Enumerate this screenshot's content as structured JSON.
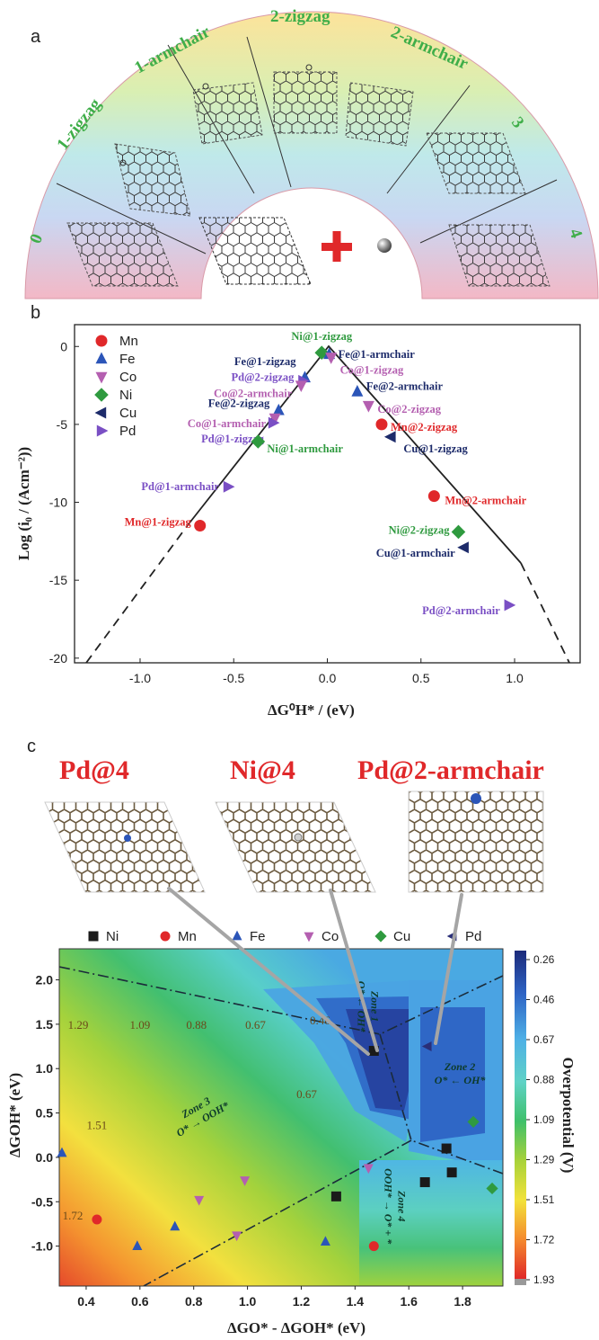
{
  "panel_a": {
    "letter": "a",
    "region_labels": [
      "0",
      "1-zigzag",
      "1-armchair",
      "2-zigzag",
      "2-armchair",
      "3",
      "4"
    ]
  },
  "panel_b": {
    "letter": "b"
  },
  "panel_c": {
    "letter": "c",
    "structure_titles": [
      "Pd@4",
      "Ni@4",
      "Pd@2-armchair"
    ]
  },
  "chart_data": [
    {
      "type": "scatter",
      "id": "volcano",
      "xlabel": "ΔG⁰H* / (eV)",
      "ylabel": "Log (i₀ / (Acm⁻²))",
      "xlim": [
        -1.35,
        1.35
      ],
      "ylim": [
        -20.3,
        1.4
      ],
      "xticks": [
        -1.0,
        -0.5,
        0.0,
        0.5,
        1.0
      ],
      "xtick_labels": [
        "-1.0",
        "-0.5",
        "0.0",
        "0.5",
        "1.0"
      ],
      "yticks": [
        0,
        -5,
        -10,
        -15,
        -20
      ],
      "ytick_labels": [
        "0",
        "-5",
        "-10",
        "-15",
        "-20"
      ],
      "legend": [
        {
          "name": "Mn",
          "marker": "circle",
          "color": "#e0282a"
        },
        {
          "name": "Fe",
          "marker": "triangle-up",
          "color": "#2b55b8"
        },
        {
          "name": "Co",
          "marker": "triangle-down",
          "color": "#b45fb0"
        },
        {
          "name": "Ni",
          "marker": "diamond",
          "color": "#2f9a3f"
        },
        {
          "name": "Cu",
          "marker": "triangle-left",
          "color": "#1d2b6a"
        },
        {
          "name": "Pd",
          "marker": "triangle-right",
          "color": "#7a4fc4"
        }
      ],
      "points": [
        {
          "label": "Ni@1-zigzag",
          "metal": "Ni",
          "x": -0.03,
          "y": -0.4,
          "color": "#2f9a3f"
        },
        {
          "label": "Fe@1-armchair",
          "metal": "Fe",
          "x": 0.01,
          "y": -0.5,
          "color": "#1d2b6a"
        },
        {
          "label": "Co@1-zigzag",
          "metal": "Co",
          "x": 0.02,
          "y": -0.7,
          "color": "#b45fb0"
        },
        {
          "label": "Fe@1-zigzag",
          "metal": "Fe",
          "x": -0.12,
          "y": -2.0,
          "color": "#1d2b6a"
        },
        {
          "label": "Pd@2-zigzag",
          "metal": "Pd",
          "x": -0.13,
          "y": -2.2,
          "color": "#7a4fc4"
        },
        {
          "label": "Co@2-armchair",
          "metal": "Co",
          "x": -0.14,
          "y": -2.5,
          "color": "#b45fb0"
        },
        {
          "label": "Fe@2-armchair",
          "metal": "Fe",
          "x": 0.16,
          "y": -2.9,
          "color": "#1d2b6a"
        },
        {
          "label": "Fe@2-zigzag",
          "metal": "Fe",
          "x": -0.26,
          "y": -4.1,
          "color": "#1d2b6a"
        },
        {
          "label": "Co@1-armchair",
          "metal": "Co",
          "x": -0.28,
          "y": -4.6,
          "color": "#b45fb0"
        },
        {
          "label": "Pd@1-zigzag",
          "metal": "Pd",
          "x": -0.29,
          "y": -4.9,
          "color": "#7a4fc4"
        },
        {
          "label": "Co@2-zigzag",
          "metal": "Co",
          "x": 0.22,
          "y": -3.8,
          "color": "#b45fb0"
        },
        {
          "label": "Mn@2-zigzag",
          "metal": "Mn",
          "x": 0.29,
          "y": -5.0,
          "color": "#e0282a"
        },
        {
          "label": "Cu@1-zigzag",
          "metal": "Cu",
          "x": 0.34,
          "y": -5.8,
          "color": "#1d2b6a"
        },
        {
          "label": "Ni@1-armchair",
          "metal": "Ni",
          "x": -0.37,
          "y": -6.1,
          "color": "#2f9a3f"
        },
        {
          "label": "Pd@1-armchair",
          "metal": "Pd",
          "x": -0.53,
          "y": -9.0,
          "color": "#7a4fc4"
        },
        {
          "label": "Mn@1-zigzag",
          "metal": "Mn",
          "x": -0.68,
          "y": -11.5,
          "color": "#e0282a"
        },
        {
          "label": "Mn@2-armchair",
          "metal": "Mn",
          "x": 0.57,
          "y": -9.6,
          "color": "#e0282a"
        },
        {
          "label": "Ni@2-zigzag",
          "metal": "Ni",
          "x": 0.7,
          "y": -11.9,
          "color": "#2f9a3f"
        },
        {
          "label": "Cu@1-armchair",
          "metal": "Cu",
          "x": 0.73,
          "y": -12.9,
          "color": "#1d2b6a"
        },
        {
          "label": "Pd@2-armchair",
          "metal": "Pd",
          "x": 0.97,
          "y": -16.6,
          "color": "#7a4fc4"
        }
      ]
    },
    {
      "type": "heatmap",
      "id": "overpotential",
      "xlabel": "ΔGO* - ΔGOH* (eV)",
      "ylabel": "ΔGOH* (eV)",
      "colorbar_label": "Overpotential (V)",
      "xlim": [
        0.3,
        1.95
      ],
      "ylim": [
        -1.45,
        2.35
      ],
      "xticks": [
        0.4,
        0.6,
        0.8,
        1.0,
        1.2,
        1.4,
        1.6,
        1.8
      ],
      "xtick_labels": [
        "0.4",
        "0.6",
        "0.8",
        "1.0",
        "1.2",
        "1.4",
        "1.6",
        "1.8"
      ],
      "yticks": [
        -1.0,
        -0.5,
        0.0,
        0.5,
        1.0,
        1.5,
        2.0
      ],
      "ytick_labels": [
        "-1.0",
        "-0.5",
        "0.0",
        "0.5",
        "1.0",
        "1.5",
        "2.0"
      ],
      "colorbar_ticks": [
        "0.26",
        "0.46",
        "0.67",
        "0.88",
        "1.09",
        "1.29",
        "1.51",
        "1.72",
        "1.93"
      ],
      "contour_labels": [
        {
          "text": "1.29",
          "x": 0.37,
          "y": 1.45
        },
        {
          "text": "1.09",
          "x": 0.6,
          "y": 1.45
        },
        {
          "text": "0.88",
          "x": 0.81,
          "y": 1.45
        },
        {
          "text": "0.67",
          "x": 1.03,
          "y": 1.45
        },
        {
          "text": "0.46",
          "x": 1.27,
          "y": 1.5
        },
        {
          "text": "0.67",
          "x": 1.22,
          "y": 0.67
        },
        {
          "text": "1.51",
          "x": 0.44,
          "y": 0.32
        },
        {
          "text": "1.72",
          "x": 0.35,
          "y": -0.7
        }
      ],
      "zones": [
        {
          "name": "Zone 1",
          "reaction": "O* ← OH*",
          "x": 1.45,
          "y": 1.7,
          "rotate": 90
        },
        {
          "name": "Zone 2",
          "reaction": "O* ← OH*",
          "x": 1.79,
          "y": 0.95,
          "rotate": 0
        },
        {
          "name": "Zone 3",
          "reaction": "O* → OOH*",
          "x": 0.82,
          "y": 0.5,
          "rotate": -30
        },
        {
          "name": "Zone 4",
          "reaction": "OOH* → O* + *",
          "x": 1.55,
          "y": -0.55,
          "rotate": 90
        }
      ],
      "legend": [
        {
          "name": "Ni",
          "marker": "square",
          "color": "#1a1a1a"
        },
        {
          "name": "Mn",
          "marker": "circle",
          "color": "#e0282a"
        },
        {
          "name": "Fe",
          "marker": "triangle-up",
          "color": "#2b55b8"
        },
        {
          "name": "Co",
          "marker": "triangle-down",
          "color": "#b45fb0"
        },
        {
          "name": "Cu",
          "marker": "diamond",
          "color": "#2f9a3f"
        },
        {
          "name": "Pd",
          "marker": "triangle-left",
          "color": "#2a2f78"
        }
      ],
      "points": [
        {
          "metal": "Ni",
          "x": 1.47,
          "y": 1.2
        },
        {
          "metal": "Ni",
          "x": 1.33,
          "y": -0.44
        },
        {
          "metal": "Ni",
          "x": 1.66,
          "y": -0.28
        },
        {
          "metal": "Ni",
          "x": 1.74,
          "y": 0.1
        },
        {
          "metal": "Ni",
          "x": 1.76,
          "y": -0.17
        },
        {
          "metal": "Mn",
          "x": 0.44,
          "y": -0.7
        },
        {
          "metal": "Mn",
          "x": 1.47,
          "y": -1.0
        },
        {
          "metal": "Fe",
          "x": 0.31,
          "y": 0.05
        },
        {
          "metal": "Fe",
          "x": 0.59,
          "y": -1.0
        },
        {
          "metal": "Fe",
          "x": 0.73,
          "y": -0.78
        },
        {
          "metal": "Fe",
          "x": 1.29,
          "y": -0.95
        },
        {
          "metal": "Co",
          "x": 0.82,
          "y": -0.48
        },
        {
          "metal": "Co",
          "x": 0.96,
          "y": -0.88
        },
        {
          "metal": "Co",
          "x": 0.99,
          "y": -0.26
        },
        {
          "metal": "Co",
          "x": 1.45,
          "y": -0.12
        },
        {
          "metal": "Cu",
          "x": 1.84,
          "y": 0.4
        },
        {
          "metal": "Cu",
          "x": 1.91,
          "y": -0.35
        },
        {
          "metal": "Pd",
          "x": 1.67,
          "y": 1.25
        }
      ]
    }
  ]
}
